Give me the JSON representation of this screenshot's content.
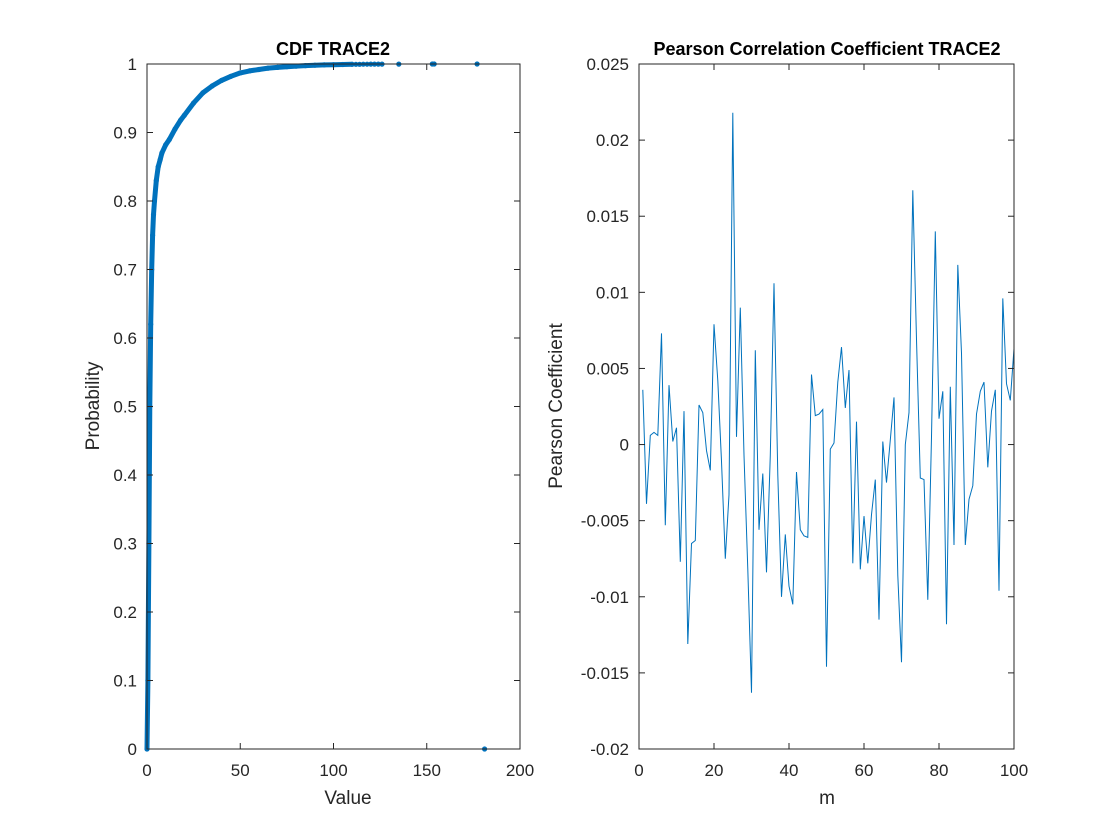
{
  "chart_data": [
    {
      "type": "scatter",
      "title": "CDF TRACE2",
      "xlabel": "Value",
      "ylabel": "Probability",
      "xlim": [
        0,
        200
      ],
      "ylim": [
        0,
        1
      ],
      "xticks": [
        0,
        50,
        100,
        150,
        200
      ],
      "xtick_labels": [
        "0",
        "50",
        "100",
        "150",
        "200"
      ],
      "yticks": [
        0,
        0.1,
        0.2,
        0.3,
        0.4,
        0.5,
        0.6,
        0.7,
        0.8,
        0.9,
        1
      ],
      "ytick_labels": [
        "0",
        "0.1",
        "0.2",
        "0.3",
        "0.4",
        "0.5",
        "0.6",
        "0.7",
        "0.8",
        "0.9",
        "1"
      ],
      "grid": false,
      "color": "#0072BD",
      "x": [
        0,
        0.5,
        1,
        1.5,
        2,
        2.5,
        3,
        3.5,
        4,
        5,
        6,
        7,
        8,
        10,
        12,
        15,
        18,
        20,
        25,
        30,
        35,
        40,
        45,
        50,
        55,
        60,
        65,
        70,
        75,
        80,
        85,
        90,
        95,
        100,
        105,
        110,
        112,
        114,
        116,
        118,
        120,
        122,
        124,
        126,
        135,
        153,
        154,
        177,
        181
      ],
      "y": [
        0,
        0.1,
        0.3,
        0.5,
        0.62,
        0.7,
        0.75,
        0.78,
        0.8,
        0.83,
        0.85,
        0.86,
        0.87,
        0.882,
        0.89,
        0.905,
        0.918,
        0.925,
        0.943,
        0.958,
        0.968,
        0.976,
        0.982,
        0.987,
        0.99,
        0.992,
        0.994,
        0.995,
        0.996,
        0.997,
        0.9977,
        0.9983,
        0.9987,
        0.999,
        0.9993,
        0.9995,
        0.9996,
        0.9996,
        0.9997,
        0.9997,
        0.9998,
        0.9998,
        0.9998,
        0.9999,
        0.9999,
        1,
        1,
        1,
        0
      ]
    },
    {
      "type": "line",
      "title": "Pearson Correlation Coefficient TRACE2",
      "xlabel": "m",
      "ylabel": "Pearson Coefficient",
      "xlim": [
        0,
        100
      ],
      "ylim": [
        -0.02,
        0.025
      ],
      "xticks": [
        0,
        20,
        40,
        60,
        80,
        100
      ],
      "xtick_labels": [
        "0",
        "20",
        "40",
        "60",
        "80",
        "100"
      ],
      "yticks": [
        -0.02,
        -0.015,
        -0.01,
        -0.005,
        0,
        0.005,
        0.01,
        0.015,
        0.02,
        0.025
      ],
      "ytick_labels": [
        "-0.02",
        "-0.015",
        "-0.01",
        "-0.005",
        "0",
        "0.005",
        "0.01",
        "0.015",
        "0.02",
        "0.025"
      ],
      "grid": false,
      "color": "#0072BD",
      "x": [
        1,
        2,
        3,
        4,
        5,
        6,
        7,
        8,
        9,
        10,
        11,
        12,
        13,
        14,
        15,
        16,
        17,
        18,
        19,
        20,
        21,
        22,
        23,
        24,
        25,
        26,
        27,
        28,
        29,
        30,
        31,
        32,
        33,
        34,
        35,
        36,
        37,
        38,
        39,
        40,
        41,
        42,
        43,
        44,
        45,
        46,
        47,
        48,
        49,
        50,
        51,
        52,
        53,
        54,
        55,
        56,
        57,
        58,
        59,
        60,
        61,
        62,
        63,
        64,
        65,
        66,
        67,
        68,
        69,
        70,
        71,
        72,
        73,
        74,
        75,
        76,
        77,
        78,
        79,
        80,
        81,
        82,
        83,
        84,
        85,
        86,
        87,
        88,
        89,
        90,
        91,
        92,
        93,
        94,
        95,
        96,
        97,
        98,
        99,
        100
      ],
      "y": [
        0.0036,
        -0.0039,
        0.0006,
        0.0008,
        0.0006,
        0.0073,
        -0.0053,
        0.0039,
        0.0002,
        0.0011,
        -0.0077,
        0.0022,
        -0.0131,
        -0.0065,
        -0.0063,
        0.0026,
        0.0021,
        -0.0004,
        -0.0017,
        0.0079,
        0.0042,
        -0.0011,
        -0.0075,
        -0.0033,
        0.0218,
        0.0005,
        0.009,
        -0.0007,
        -0.0082,
        -0.0163,
        0.0062,
        -0.0056,
        -0.0019,
        -0.0084,
        -0.0007,
        0.0106,
        -0.002,
        -0.01,
        -0.0059,
        -0.0093,
        -0.0105,
        -0.0018,
        -0.0056,
        -0.006,
        -0.0061,
        0.0046,
        0.0019,
        0.002,
        0.0023,
        -0.0146,
        -0.0003,
        0.0001,
        0.0041,
        0.0064,
        0.0024,
        0.0049,
        -0.0078,
        0.0015,
        -0.0082,
        -0.0047,
        -0.0078,
        -0.0046,
        -0.0023,
        -0.0115,
        0.0002,
        -0.0025,
        0.0003,
        0.0031,
        -0.0086,
        -0.0143,
        0,
        0.0021,
        0.0167,
        0.0069,
        -0.0022,
        -0.0023,
        -0.0102,
        0.0005,
        0.014,
        0.0017,
        0.0035,
        -0.0118,
        0.0038,
        -0.0066,
        0.0118,
        0.006,
        -0.0066,
        -0.0036,
        -0.0027,
        0.002,
        0.0035,
        0.0041,
        -0.0015,
        0.0022,
        0.0036,
        -0.0096,
        0.0096,
        0.004,
        0.0029,
        0.0063
      ]
    }
  ]
}
